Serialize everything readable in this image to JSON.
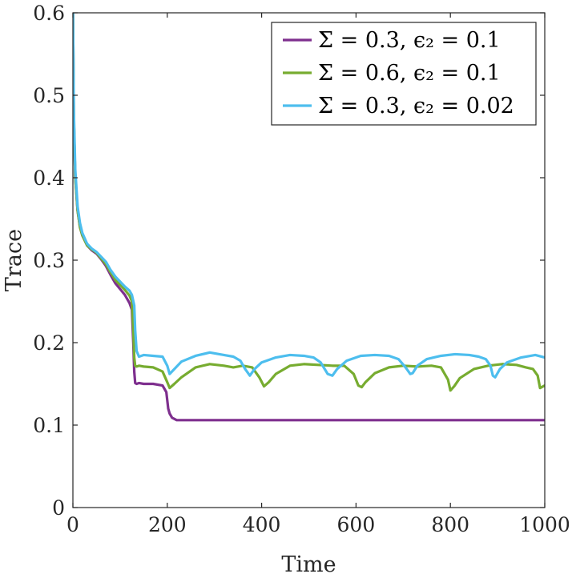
{
  "chart_data": {
    "type": "line",
    "xlabel": "Time",
    "ylabel": "Trace",
    "xlim": [
      0,
      1000
    ],
    "ylim": [
      0,
      0.6
    ],
    "xticks": [
      "0",
      "200",
      "400",
      "600",
      "800",
      "1000"
    ],
    "yticks": [
      "0",
      "0.1",
      "0.2",
      "0.3",
      "0.4",
      "0.5",
      "0.6"
    ],
    "grid": false,
    "legend_position": "top-right",
    "series": [
      {
        "name": "Σ = 0.3, ϵ₂ = 0.1",
        "color": "#7e2f8e",
        "x": [
          0,
          2,
          5,
          10,
          15,
          20,
          30,
          40,
          50,
          60,
          70,
          80,
          90,
          100,
          110,
          120,
          125,
          128,
          130,
          132,
          135,
          140,
          150,
          170,
          190,
          198,
          202,
          205,
          210,
          220,
          240,
          260,
          300,
          350,
          400,
          450,
          500,
          550,
          600,
          650,
          700,
          750,
          800,
          850,
          900,
          950,
          1000
        ],
        "y": [
          0.61,
          0.47,
          0.4,
          0.36,
          0.34,
          0.33,
          0.318,
          0.312,
          0.308,
          0.301,
          0.293,
          0.282,
          0.272,
          0.265,
          0.258,
          0.248,
          0.24,
          0.2,
          0.165,
          0.151,
          0.15,
          0.151,
          0.15,
          0.15,
          0.148,
          0.14,
          0.12,
          0.114,
          0.109,
          0.106,
          0.106,
          0.106,
          0.106,
          0.106,
          0.106,
          0.106,
          0.106,
          0.106,
          0.106,
          0.106,
          0.106,
          0.106,
          0.106,
          0.106,
          0.106,
          0.106,
          0.106
        ]
      },
      {
        "name": "Σ = 0.6, ϵ₂ = 0.1",
        "color": "#77ac30",
        "x": [
          0,
          2,
          5,
          10,
          15,
          20,
          30,
          40,
          50,
          60,
          70,
          80,
          90,
          100,
          110,
          120,
          125,
          128,
          130,
          132,
          135,
          140,
          150,
          170,
          190,
          200,
          205,
          215,
          230,
          260,
          290,
          320,
          340,
          360,
          380,
          395,
          405,
          415,
          430,
          460,
          490,
          520,
          550,
          575,
          595,
          605,
          612,
          620,
          640,
          670,
          700,
          730,
          760,
          780,
          795,
          800,
          808,
          820,
          850,
          880,
          910,
          940,
          960,
          975,
          985,
          990,
          1000
        ],
        "y": [
          0.61,
          0.47,
          0.4,
          0.36,
          0.34,
          0.33,
          0.318,
          0.313,
          0.309,
          0.302,
          0.295,
          0.285,
          0.276,
          0.27,
          0.264,
          0.257,
          0.25,
          0.215,
          0.182,
          0.172,
          0.171,
          0.172,
          0.171,
          0.17,
          0.165,
          0.152,
          0.145,
          0.15,
          0.158,
          0.17,
          0.174,
          0.172,
          0.17,
          0.172,
          0.17,
          0.158,
          0.147,
          0.152,
          0.162,
          0.172,
          0.174,
          0.173,
          0.172,
          0.172,
          0.162,
          0.148,
          0.146,
          0.152,
          0.163,
          0.17,
          0.172,
          0.171,
          0.172,
          0.17,
          0.155,
          0.142,
          0.147,
          0.157,
          0.168,
          0.172,
          0.174,
          0.173,
          0.17,
          0.168,
          0.16,
          0.145,
          0.148
        ]
      },
      {
        "name": "Σ = 0.3, ϵ₂ = 0.02",
        "color": "#4dbeee",
        "x": [
          0,
          2,
          5,
          10,
          15,
          20,
          30,
          40,
          50,
          60,
          70,
          80,
          90,
          100,
          110,
          120,
          125,
          130,
          132,
          135,
          140,
          150,
          170,
          190,
          200,
          205,
          215,
          230,
          260,
          290,
          320,
          340,
          355,
          365,
          375,
          385,
          400,
          430,
          460,
          490,
          510,
          525,
          540,
          550,
          560,
          580,
          610,
          640,
          670,
          690,
          705,
          715,
          720,
          730,
          750,
          780,
          810,
          840,
          860,
          875,
          885,
          890,
          895,
          905,
          920,
          950,
          980,
          1000
        ],
        "y": [
          0.61,
          0.48,
          0.41,
          0.365,
          0.345,
          0.333,
          0.32,
          0.314,
          0.31,
          0.304,
          0.298,
          0.288,
          0.28,
          0.274,
          0.268,
          0.263,
          0.258,
          0.245,
          0.215,
          0.19,
          0.183,
          0.185,
          0.184,
          0.183,
          0.172,
          0.162,
          0.168,
          0.177,
          0.184,
          0.188,
          0.185,
          0.183,
          0.178,
          0.168,
          0.16,
          0.168,
          0.176,
          0.182,
          0.185,
          0.184,
          0.182,
          0.176,
          0.162,
          0.16,
          0.168,
          0.178,
          0.184,
          0.185,
          0.184,
          0.18,
          0.17,
          0.162,
          0.163,
          0.172,
          0.18,
          0.184,
          0.186,
          0.185,
          0.183,
          0.18,
          0.172,
          0.16,
          0.158,
          0.168,
          0.176,
          0.182,
          0.185,
          0.182
        ]
      }
    ]
  }
}
